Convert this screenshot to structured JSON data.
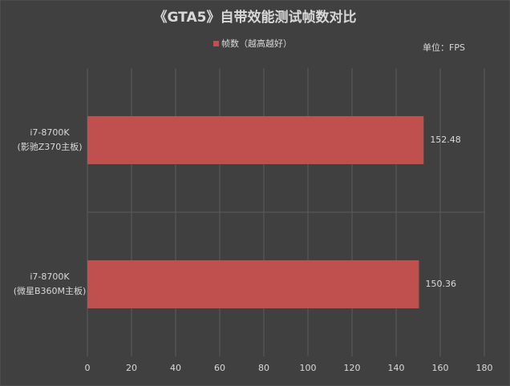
{
  "chart_data": {
    "type": "barh",
    "title": "《GTA5》自带效能测试帧数对比",
    "annotation": "单位：FPS",
    "categories": [
      [
        "i7-8700K",
        "(影驰Z370主板)"
      ],
      [
        "i7-8700K",
        "(微星B360M主板)"
      ]
    ],
    "series": [
      {
        "name": "帧数（越高越好）",
        "color": "#c0504d",
        "values": [
          152.48,
          150.36
        ]
      }
    ],
    "xlim": [
      0,
      180
    ],
    "xticks": [
      0,
      20,
      40,
      60,
      80,
      100,
      120,
      140,
      160,
      180
    ],
    "grid": true
  }
}
